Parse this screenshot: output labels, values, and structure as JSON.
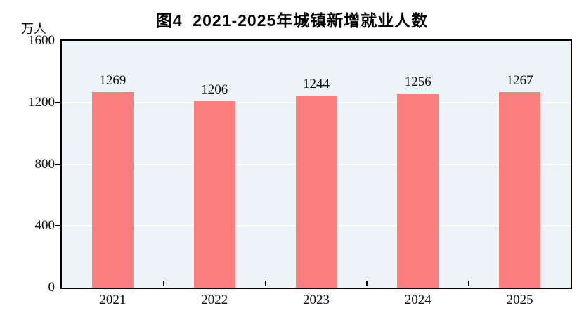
{
  "chart_data": {
    "type": "bar",
    "title": "图4  2021-2025年城镇新增就业人数",
    "figure_number": "图4",
    "categories": [
      "2021",
      "2022",
      "2023",
      "2024",
      "2025"
    ],
    "values": [
      1269,
      1206,
      1244,
      1256,
      1267
    ],
    "value_labels": [
      "1269",
      "1206",
      "1244",
      "1256",
      "1267"
    ],
    "xlabel": "",
    "ylabel": "万人",
    "ylim": [
      0,
      1600
    ],
    "yticks": [
      0,
      400,
      800,
      1200,
      1600
    ],
    "ytick_labels": [
      "0",
      "400",
      "800",
      "1200",
      "1600"
    ],
    "grid": "horizontal",
    "legend_position": "none",
    "colors": {
      "bar_fill": "#FC7D7D",
      "plot_background": "#EDF4F7",
      "plot_border": "#000000",
      "gridline": "#FFFFFF",
      "text": "#111111",
      "page_background": "#FFFFFF"
    }
  }
}
